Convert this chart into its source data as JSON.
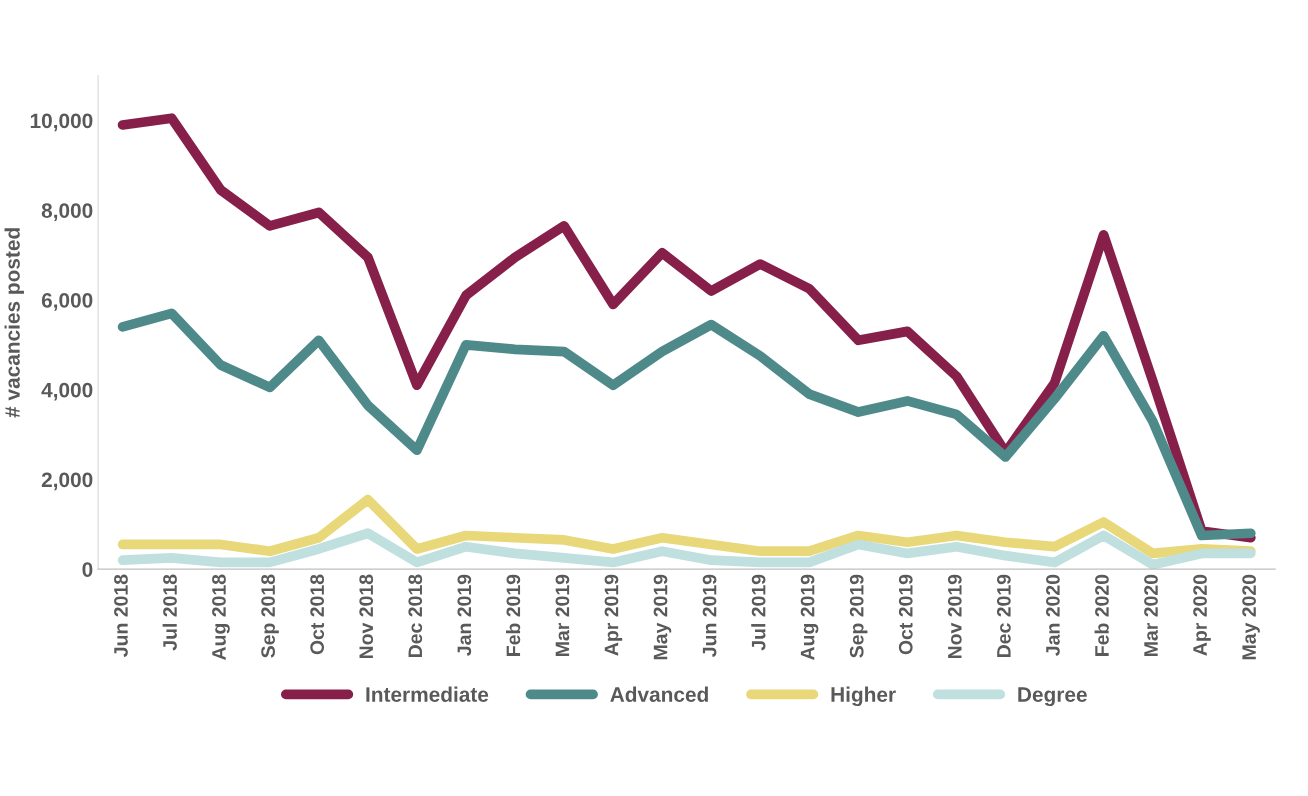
{
  "chart_data": {
    "type": "line",
    "ylabel": "# vacancies posted",
    "categories": [
      "Jun 2018",
      "Jul 2018",
      "Aug 2018",
      "Sep 2018",
      "Oct 2018",
      "Nov 2018",
      "Dec 2018",
      "Jan 2019",
      "Feb 2019",
      "Mar 2019",
      "Apr 2019",
      "May 2019",
      "Jun 2019",
      "Jul 2019",
      "Aug 2019",
      "Sep 2019",
      "Oct 2019",
      "Nov 2019",
      "Dec 2019",
      "Jan 2020",
      "Feb 2020",
      "Mar 2020",
      "Apr 2020",
      "May 2020"
    ],
    "series": [
      {
        "name": "Intermediate",
        "color": "#86204a",
        "values": [
          9900,
          10050,
          8450,
          7650,
          7950,
          6950,
          4100,
          6100,
          6950,
          7650,
          5900,
          7050,
          6200,
          6800,
          6250,
          5100,
          5300,
          4300,
          2600,
          4150,
          7450,
          4200,
          850,
          700
        ]
      },
      {
        "name": "Advanced",
        "color": "#4f8a8b",
        "values": [
          5400,
          5700,
          4550,
          4050,
          5100,
          3650,
          2650,
          5000,
          4900,
          4850,
          4100,
          4850,
          5450,
          4750,
          3900,
          3500,
          3750,
          3450,
          2500,
          3800,
          5200,
          3300,
          750,
          800
        ]
      },
      {
        "name": "Higher",
        "color": "#e8d87a",
        "values": [
          550,
          550,
          550,
          400,
          700,
          1550,
          450,
          750,
          700,
          650,
          450,
          700,
          550,
          400,
          400,
          750,
          600,
          750,
          600,
          500,
          1050,
          350,
          450,
          400
        ]
      },
      {
        "name": "Degree",
        "color": "#bfe0df",
        "values": [
          200,
          250,
          150,
          150,
          450,
          800,
          150,
          500,
          350,
          250,
          150,
          400,
          200,
          150,
          150,
          550,
          350,
          500,
          300,
          150,
          750,
          100,
          350,
          350
        ]
      }
    ],
    "ylim": [
      0,
      11000
    ],
    "yticks": [
      {
        "value": 0,
        "label": "0"
      },
      {
        "value": 2000,
        "label": "2,000"
      },
      {
        "value": 4000,
        "label": "4,000"
      },
      {
        "value": 6000,
        "label": "6,000"
      },
      {
        "value": 8000,
        "label": "8,000"
      },
      {
        "value": 10000,
        "label": "10,000"
      }
    ],
    "grid": false,
    "legend": "bottom",
    "line_style": "solid",
    "marker": "none"
  }
}
